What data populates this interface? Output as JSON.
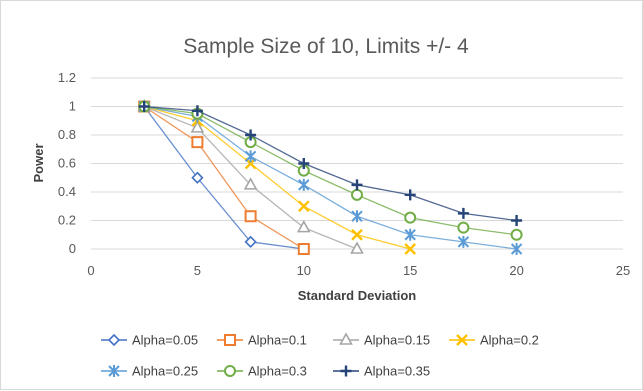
{
  "chart_data": {
    "type": "line",
    "title": "Sample Size of 10, Limits +/- 4",
    "xlabel": "Standard Deviation",
    "ylabel": "Power",
    "xlim": [
      0,
      25
    ],
    "ylim": [
      0,
      1.2
    ],
    "x_ticks": [
      0,
      5,
      10,
      15,
      20,
      25
    ],
    "y_ticks": [
      0,
      0.2,
      0.4,
      0.6,
      0.8,
      1,
      1.2
    ],
    "x_tick_labels": [
      "0",
      "5",
      "10",
      "15",
      "20",
      "25"
    ],
    "y_tick_labels": [
      "0",
      "0.2",
      "0.4",
      "0.6",
      "0.8",
      "1",
      "1.2"
    ],
    "grid": "horizontal",
    "legend_position": "bottom",
    "series": [
      {
        "name": "Alpha=0.05",
        "color": "#4472C4",
        "marker": "diamond",
        "x": [
          2.5,
          5,
          7.5,
          10
        ],
        "y": [
          1,
          0.5,
          0.05,
          0
        ]
      },
      {
        "name": "Alpha=0.1",
        "color": "#ED7D31",
        "marker": "square",
        "x": [
          2.5,
          5,
          7.5,
          10
        ],
        "y": [
          1,
          0.75,
          0.23,
          0
        ]
      },
      {
        "name": "Alpha=0.15",
        "color": "#A5A5A5",
        "marker": "triangle",
        "x": [
          2.5,
          5,
          7.5,
          10,
          12.5
        ],
        "y": [
          1,
          0.85,
          0.45,
          0.15,
          0
        ]
      },
      {
        "name": "Alpha=0.2",
        "color": "#FFC000",
        "marker": "x",
        "x": [
          2.5,
          5,
          7.5,
          10,
          12.5,
          15
        ],
        "y": [
          1,
          0.9,
          0.6,
          0.3,
          0.1,
          0
        ]
      },
      {
        "name": "Alpha=0.25",
        "color": "#5B9BD5",
        "marker": "star",
        "x": [
          2.5,
          5,
          7.5,
          10,
          12.5,
          15,
          17.5,
          20
        ],
        "y": [
          1,
          0.93,
          0.65,
          0.45,
          0.23,
          0.1,
          0.05,
          0
        ]
      },
      {
        "name": "Alpha=0.3",
        "color": "#70AD47",
        "marker": "circle",
        "x": [
          2.5,
          5,
          7.5,
          10,
          12.5,
          15,
          17.5,
          20
        ],
        "y": [
          1,
          0.95,
          0.75,
          0.55,
          0.38,
          0.22,
          0.15,
          0.1
        ]
      },
      {
        "name": "Alpha=0.35",
        "color": "#264478",
        "marker": "plus",
        "x": [
          2.5,
          5,
          7.5,
          10,
          12.5,
          15,
          17.5,
          20
        ],
        "y": [
          1,
          0.97,
          0.8,
          0.6,
          0.45,
          0.38,
          0.25,
          0.2
        ]
      }
    ]
  }
}
